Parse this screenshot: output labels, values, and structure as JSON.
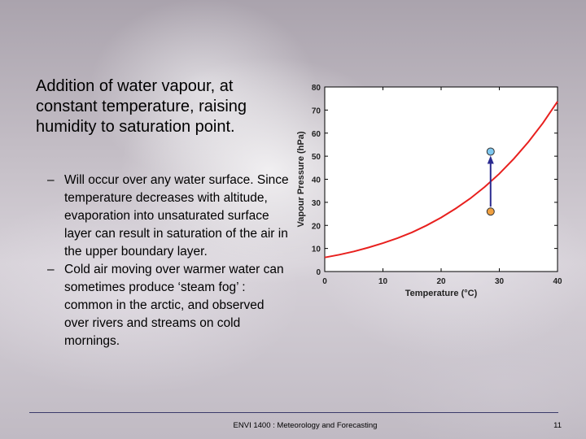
{
  "slide": {
    "title": "Addition of water vapour, at constant temperature, raising humidity to saturation point.",
    "bullets": [
      "Will occur over any water surface. Since temperature decreases with altitude, evaporation into unsaturated surface layer can result in saturation of the air in the upper boundary layer.",
      "Cold air moving over warmer water can sometimes produce ‘steam fog’ : common in the arctic, and observed over rivers and streams on cold mornings."
    ],
    "bullet_marker": "–"
  },
  "footer": {
    "course": "ENVI 1400 : Meteorology and Forecasting",
    "page": "11"
  },
  "chart_data": {
    "type": "line",
    "title": "",
    "xlabel": "Temperature (°C)",
    "ylabel": "Vapour Pressure (hPa)",
    "xlim": [
      0,
      40
    ],
    "ylim": [
      0,
      80
    ],
    "x_ticks": [
      0,
      10,
      20,
      30,
      40
    ],
    "y_ticks": [
      0,
      10,
      20,
      30,
      40,
      50,
      60,
      70,
      80
    ],
    "grid": false,
    "series": [
      {
        "color": "#e8201e",
        "x": [
          0,
          2.5,
          5,
          7.5,
          10,
          12.5,
          15,
          17.5,
          20,
          22.5,
          25,
          27.5,
          30,
          32.5,
          35,
          37.5,
          40
        ],
        "y": [
          6.1,
          7.3,
          8.7,
          10.4,
          12.3,
          14.5,
          17.0,
          20.0,
          23.4,
          27.3,
          31.7,
          36.7,
          42.4,
          48.9,
          56.2,
          64.4,
          73.7
        ]
      }
    ],
    "annotation": {
      "x": 28.5,
      "start_y": 26,
      "end_y": 52,
      "start_color": "#f0a040",
      "end_color": "#7ec8f0",
      "arrow_color": "#2a2a90"
    }
  }
}
